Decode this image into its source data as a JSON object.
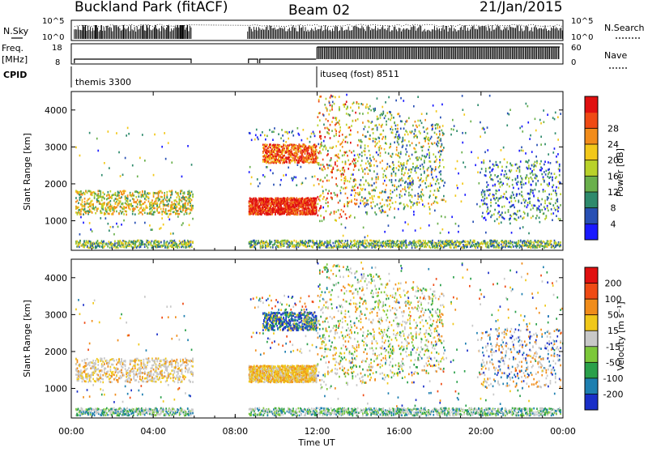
{
  "header": {
    "station": "Buckland Park (fitACF)",
    "beam": "Beam 02",
    "date": "21/Jan/2015"
  },
  "panels": {
    "nsky": {
      "label": "N.Sky",
      "ticks": [
        "10^5",
        "10^0"
      ],
      "right_label": "N.Search",
      "right_ticks": [
        "10^5",
        "10^0"
      ]
    },
    "freq": {
      "label_line1": "Freq.",
      "label_line2": "[MHz]",
      "ticks": [
        "18",
        "8"
      ],
      "right_label": "Nave",
      "right_ticks": [
        "60",
        "0"
      ]
    },
    "cpid": {
      "label": "CPID",
      "modes": [
        {
          "start_hour": 0.0,
          "text": "themis 3300"
        },
        {
          "start_hour": 12.0,
          "text": "ituseq (fost) 8511"
        }
      ]
    }
  },
  "chart_data": [
    {
      "type": "heatmap",
      "name": "power",
      "ylabel": "Slant Range [km]",
      "ylim": [
        200,
        4500
      ],
      "yticks": [
        1000,
        2000,
        3000,
        4000
      ],
      "xlim": [
        0,
        24
      ],
      "colorbar": {
        "label": "Power [dB]",
        "ticks": [
          "4",
          "8",
          "12",
          "16",
          "20",
          "24",
          "28"
        ],
        "colors": [
          "#1a1aff",
          "#2850b4",
          "#2e8a6c",
          "#6ab04c",
          "#b9d22a",
          "#f2c81a",
          "#f28c1a",
          "#ef4a14",
          "#e01010"
        ]
      }
    },
    {
      "type": "heatmap",
      "name": "velocity",
      "ylabel": "Slant Range [km]",
      "ylim": [
        200,
        4500
      ],
      "yticks": [
        1000,
        2000,
        3000,
        4000
      ],
      "xlim": [
        0,
        24
      ],
      "xlabel": "Time UT",
      "xticks": [
        "00:00",
        "04:00",
        "08:00",
        "12:00",
        "16:00",
        "20:00",
        "00:00"
      ],
      "colorbar": {
        "label": "Velocity [m s⁻¹]",
        "ticks": [
          "200",
          "100",
          "50",
          "15",
          "-15",
          "-50",
          "-100",
          "-200"
        ],
        "colors": [
          "#1a2fc8",
          "#1e7fb0",
          "#2aa04a",
          "#7cc83a",
          "#c8c8c8",
          "#f0c81a",
          "#f08c1a",
          "#ef4a14",
          "#e01010"
        ]
      }
    }
  ]
}
